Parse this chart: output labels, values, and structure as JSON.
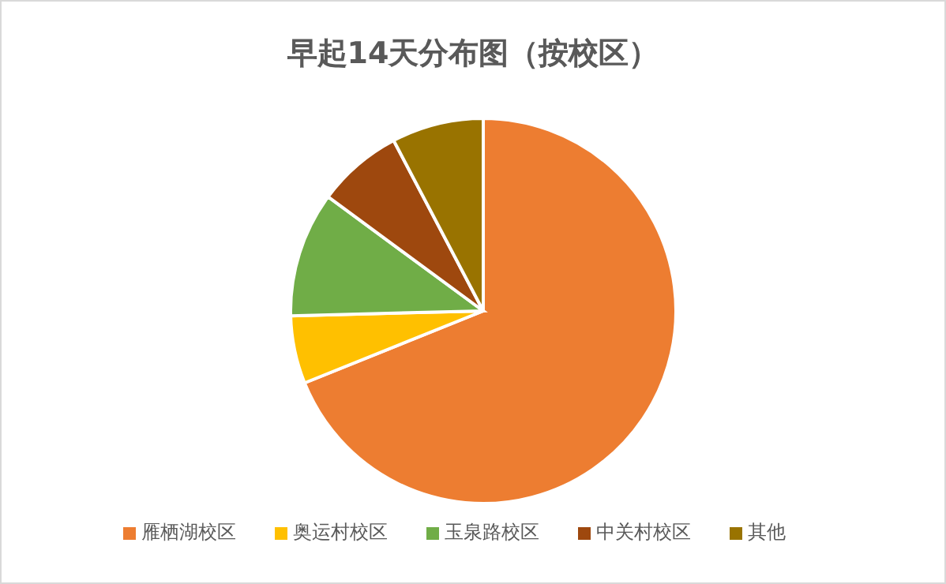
{
  "chart_data": {
    "type": "pie",
    "title": "早起14天分布图（按校区）",
    "categories": [
      "雁栖湖校区",
      "奥运村校区",
      "玉泉路校区",
      "中关村校区",
      "其他"
    ],
    "values": [
      68.9,
      5.7,
      10.5,
      7.2,
      7.7
    ],
    "colors": [
      "#ed7d31",
      "#ffc000",
      "#70ad47",
      "#9e480e",
      "#997300"
    ],
    "legend": "bottom"
  }
}
